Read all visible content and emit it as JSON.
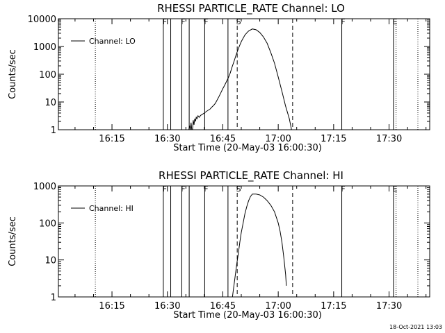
{
  "footer": {
    "timestamp": "18-Oct-2021 13:03"
  },
  "x_ticks": [
    {
      "t": 15,
      "label": "16:15"
    },
    {
      "t": 30,
      "label": "16:30"
    },
    {
      "t": 45,
      "label": "16:45"
    },
    {
      "t": 60,
      "label": "17:00"
    },
    {
      "t": 75,
      "label": "17:15"
    },
    {
      "t": 90,
      "label": "17:30"
    }
  ],
  "x_range_minutes_after_16_00": [
    0.5,
    101
  ],
  "markers": [
    {
      "t": 10.5,
      "style": "dotted",
      "label": ""
    },
    {
      "t": 28.9,
      "style": "solid",
      "label": "F"
    },
    {
      "t": 30.9,
      "style": "solid",
      "label": ""
    },
    {
      "t": 33.9,
      "style": "solid",
      "label": "F"
    },
    {
      "t": 35.9,
      "style": "solid",
      "label": ""
    },
    {
      "t": 40.1,
      "style": "solid",
      "label": "F"
    },
    {
      "t": 46.4,
      "style": "solid",
      "label": ""
    },
    {
      "t": 48.9,
      "style": "dashed",
      "label": "S"
    },
    {
      "t": 63.9,
      "style": "dashed",
      "label": ""
    },
    {
      "t": 77.2,
      "style": "solid",
      "label": "F"
    },
    {
      "t": 91.2,
      "style": "solid",
      "label": "E"
    },
    {
      "t": 91.9,
      "style": "dotted",
      "label": ""
    },
    {
      "t": 97.8,
      "style": "dotted",
      "label": ""
    }
  ],
  "chart_data": [
    {
      "type": "line",
      "title": "RHESSI PARTICLE_RATE Channel: LO",
      "xlabel": "Start Time (20-May-03 16:00:30)",
      "ylabel": "Counts/sec",
      "yscale": "log",
      "ylim": [
        1,
        10000
      ],
      "y_ticks": [
        {
          "v": 1,
          "label": "1"
        },
        {
          "v": 10,
          "label": "10"
        },
        {
          "v": 100,
          "label": "100"
        },
        {
          "v": 1000,
          "label": "1000"
        },
        {
          "v": 10000,
          "label": "10000"
        }
      ],
      "legend": {
        "position": "top-left",
        "entries": [
          "Channel: LO"
        ]
      },
      "series": [
        {
          "name": "Channel: LO",
          "x": [
            35.8,
            36.0,
            36.2,
            36.4,
            36.6,
            36.8,
            37.0,
            37.2,
            37.4,
            37.6,
            37.8,
            38.0,
            38.3,
            38.6,
            39.0,
            39.5,
            40.0,
            40.5,
            41.0,
            41.5,
            42.0,
            42.5,
            43.0,
            43.5,
            44.0,
            44.5,
            45.0,
            45.5,
            46.0,
            46.5,
            47.0,
            47.5,
            48.0,
            48.5,
            49.0,
            49.5,
            50.0,
            50.5,
            51.0,
            51.5,
            52.0,
            53.0,
            54.0,
            55.0,
            56.0,
            57.0,
            58.0,
            59.0,
            60.0,
            61.0,
            62.0,
            63.0,
            63.6
          ],
          "y": [
            1,
            1.4,
            1,
            1.8,
            1,
            1,
            2.2,
            1.5,
            2.5,
            2,
            2.8,
            2.5,
            3.2,
            2.8,
            3.3,
            3.6,
            4,
            4.5,
            5,
            5.5,
            6.5,
            7.5,
            9,
            12,
            16,
            22,
            30,
            40,
            55,
            75,
            110,
            180,
            280,
            450,
            700,
            1050,
            1500,
            2000,
            2600,
            3100,
            3600,
            4300,
            4000,
            3200,
            2200,
            1300,
            600,
            250,
            80,
            24,
            7,
            2.5,
            1
          ]
        }
      ]
    },
    {
      "type": "line",
      "title": "RHESSI PARTICLE_RATE Channel: HI",
      "xlabel": "Start Time (20-May-03 16:00:30)",
      "ylabel": "Counts/sec",
      "yscale": "log",
      "ylim": [
        1,
        1000
      ],
      "y_ticks": [
        {
          "v": 1,
          "label": "1"
        },
        {
          "v": 10,
          "label": "10"
        },
        {
          "v": 100,
          "label": "100"
        },
        {
          "v": 1000,
          "label": "1000"
        }
      ],
      "legend": {
        "position": "top-left",
        "entries": [
          "Channel: HI"
        ]
      },
      "series": [
        {
          "name": "Channel: HI",
          "x": [
            47.6,
            48.0,
            48.4,
            48.8,
            49.2,
            49.6,
            50.0,
            50.5,
            51.0,
            51.5,
            52.0,
            52.5,
            53.0,
            54.0,
            55.0,
            56.0,
            57.0,
            58.0,
            59.0,
            60.0,
            60.5,
            61.0,
            61.5,
            62.0,
            62.2
          ],
          "y": [
            1,
            2,
            4,
            8,
            15,
            30,
            55,
            100,
            180,
            280,
            400,
            520,
            600,
            600,
            570,
            500,
            400,
            300,
            200,
            100,
            60,
            30,
            12,
            4,
            2
          ]
        }
      ]
    }
  ]
}
